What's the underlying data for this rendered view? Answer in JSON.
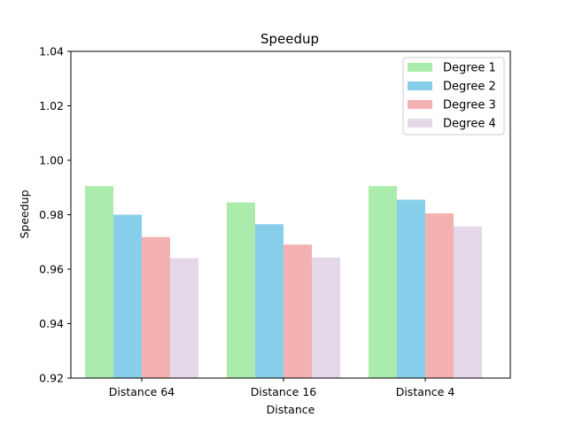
{
  "chart_data": {
    "type": "bar",
    "title": "Speedup",
    "xlabel": "Distance",
    "ylabel": "Speedup",
    "categories": [
      "Distance 64",
      "Distance 16",
      "Distance 4"
    ],
    "series": [
      {
        "name": "Degree 1",
        "color": "#abebab",
        "values": [
          0.9905,
          0.9845,
          0.9905
        ]
      },
      {
        "name": "Degree 2",
        "color": "#87ceeb",
        "values": [
          0.98,
          0.9765,
          0.9855
        ]
      },
      {
        "name": "Degree 3",
        "color": "#f4b1b1",
        "values": [
          0.9718,
          0.969,
          0.9805
        ]
      },
      {
        "name": "Degree 4",
        "color": "#e4d7e7",
        "values": [
          0.964,
          0.9643,
          0.9757
        ]
      }
    ],
    "ylim": [
      0.92,
      1.04
    ],
    "yticks": [
      "0.92",
      "0.94",
      "0.96",
      "0.98",
      "1.00",
      "1.02",
      "1.04"
    ],
    "grid": false,
    "legend_position": "top-right"
  }
}
